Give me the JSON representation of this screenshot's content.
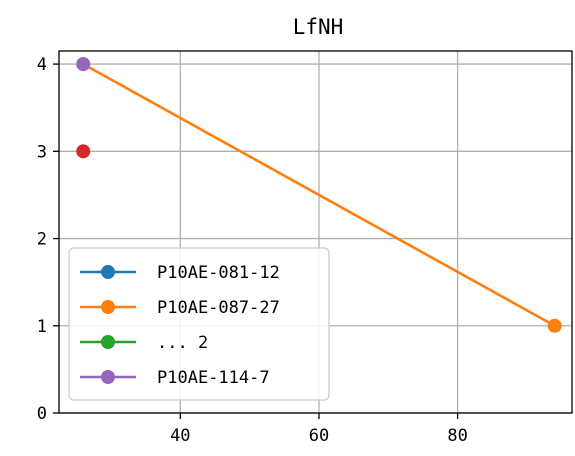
{
  "chart_data": {
    "type": "line",
    "title": "LfNH",
    "xlabel": "",
    "ylabel": "",
    "xlim": [
      22.5,
      96.5
    ],
    "ylim": [
      0,
      4.15
    ],
    "xticks": [
      40,
      60,
      80
    ],
    "yticks": [
      0,
      1,
      2,
      3,
      4
    ],
    "grid": true,
    "legend_position": "lower-left",
    "series": [
      {
        "name": "P10AE-081-12",
        "color": "#1f77b4",
        "x": [],
        "y": []
      },
      {
        "name": "P10AE-087-27",
        "color": "#ff7f0e",
        "x": [
          26,
          94
        ],
        "y": [
          4,
          1
        ]
      },
      {
        "name": "... 2",
        "color": "#2ca02c",
        "x": [],
        "y": []
      },
      {
        "name": "P10AE-114-7",
        "color": "#9467bd",
        "x": [
          26
        ],
        "y": [
          4
        ]
      },
      {
        "name": "",
        "color": "#d62728",
        "x": [
          26
        ],
        "y": [
          3
        ]
      }
    ]
  }
}
